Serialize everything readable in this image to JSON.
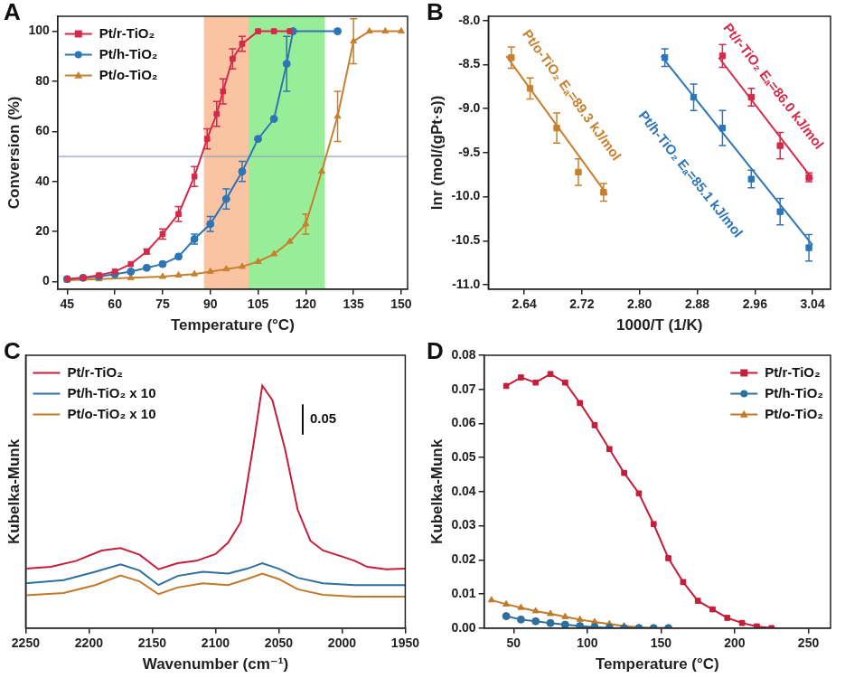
{
  "chart_data": [
    {
      "type": "line",
      "title": "A",
      "x_label": "Temperature (°C)",
      "y_label": "Conversion (%)",
      "xlim": [
        42,
        152
      ],
      "xticks": [
        45,
        60,
        75,
        90,
        105,
        120,
        135,
        150
      ],
      "ylim": [
        -3,
        106
      ],
      "yticks": [
        0,
        20,
        40,
        60,
        80,
        100
      ],
      "grid": false,
      "legend": "upper left",
      "bands": [
        {
          "from": 88,
          "to": 102,
          "color": "#f9b48a"
        },
        {
          "from": 102,
          "to": 126,
          "color": "#7ee87e"
        }
      ],
      "reference_line": {
        "y": 50,
        "color": "#8fa3bf"
      },
      "series": [
        {
          "name": "Pt/r-TiO₂",
          "color": "#d42a4a",
          "marker": "square",
          "line_style": "solid",
          "x": [
            45,
            50,
            55,
            60,
            65,
            70,
            75,
            80,
            85,
            89,
            92,
            94,
            97,
            100,
            105,
            110,
            115
          ],
          "values": [
            1,
            1.5,
            2.5,
            4,
            7,
            12,
            19,
            27,
            42,
            57,
            67,
            76,
            89,
            95,
            100,
            100,
            100
          ],
          "errors": [
            null,
            null,
            null,
            null,
            null,
            1,
            2,
            3,
            4,
            4,
            5,
            5,
            4,
            3,
            null,
            null,
            null
          ]
        },
        {
          "name": "Pt/h-TiO₂",
          "color": "#2e75b6",
          "marker": "circle",
          "line_style": "solid",
          "x": [
            45,
            50,
            55,
            60,
            65,
            70,
            75,
            80,
            85,
            90,
            95,
            100,
            105,
            110,
            114,
            116,
            130
          ],
          "values": [
            1,
            1.5,
            2,
            3,
            4,
            5.5,
            7,
            10,
            17,
            23,
            33,
            44,
            57,
            65,
            87,
            100,
            100
          ],
          "errors": [
            null,
            null,
            null,
            null,
            null,
            null,
            null,
            null,
            2,
            3,
            4,
            4,
            null,
            null,
            11,
            null,
            null
          ]
        },
        {
          "name": "Pt/o-TiO₂",
          "color": "#c7802e",
          "marker": "triangle",
          "line_style": "solid",
          "x": [
            45,
            55,
            65,
            75,
            80,
            85,
            90,
            95,
            100,
            105,
            110,
            115,
            120,
            125,
            130,
            135,
            140,
            145,
            150
          ],
          "values": [
            0.5,
            1,
            1.5,
            2,
            2.5,
            3,
            4,
            5,
            6,
            8,
            11,
            16,
            23,
            44,
            66,
            96,
            100,
            100,
            100
          ],
          "errors": [
            null,
            null,
            null,
            null,
            null,
            null,
            null,
            null,
            null,
            null,
            null,
            null,
            4,
            null,
            10,
            9,
            null,
            null,
            null
          ]
        }
      ]
    },
    {
      "type": "scatter",
      "title": "B",
      "x_label": "1000/T (1/K)",
      "y_label": "lnr (mol/(gPt·s))",
      "xlim": [
        2.59,
        3.065
      ],
      "xticks": [
        2.64,
        2.72,
        {
          "value": 2.8,
          "label": "2.80"
        },
        2.88,
        2.96,
        3.04
      ],
      "ylim": [
        -11.05,
        -7.95
      ],
      "yticks": [
        {
          "value": -11,
          "label": "-11.0"
        },
        -10.5,
        {
          "value": -10,
          "label": "-10.0"
        },
        -9.5,
        {
          "value": -9,
          "label": "-9.0"
        },
        -8.5,
        {
          "value": -8,
          "label": "-8.0"
        }
      ],
      "grid": false,
      "series": [
        {
          "color": "#c7802e",
          "marker": "square",
          "x": [
            2.622,
            2.648,
            2.685,
            2.715,
            2.75
          ],
          "values": [
            -8.42,
            -8.77,
            -9.22,
            -9.72,
            -9.95
          ],
          "errors": [
            0.12,
            0.12,
            0.17,
            0.15,
            0.1
          ],
          "fit": {
            "x": [
              2.615,
              2.755
            ],
            "values": [
              -8.4,
              -9.98
            ]
          },
          "label": {
            "text": "Pt/o-TiO₂ Eₐ=89.3 kJ/mol",
            "x": 2.705,
            "y": -8.85
          }
        },
        {
          "color": "#2e75b6",
          "marker": "square",
          "x": [
            2.835,
            2.875,
            2.915,
            2.955,
            2.995,
            3.035
          ],
          "values": [
            -8.42,
            -8.87,
            -9.22,
            -9.8,
            -10.17,
            -10.58
          ],
          "errors": [
            0.1,
            0.15,
            0.2,
            0.1,
            0.15,
            0.15
          ],
          "fit": {
            "x": [
              2.83,
              3.04
            ],
            "values": [
              -8.4,
              -10.55
            ]
          },
          "label": {
            "text": "Pt/h-TiO₂ Eₐ=85.1 kJ/mol",
            "x": 2.87,
            "y": -9.75
          }
        },
        {
          "color": "#d42a4a",
          "marker": "square",
          "x": [
            2.915,
            2.955,
            2.995,
            3.035
          ],
          "values": [
            -8.4,
            -8.87,
            -9.42,
            -9.78
          ],
          "errors": [
            0.13,
            0.1,
            0.15,
            0.05
          ],
          "fit": {
            "x": [
              2.91,
              3.04
            ],
            "values": [
              -8.42,
              -9.8
            ]
          },
          "label": {
            "text": "Pt/r-TiO₂ Eₐ=86.0 kJ/mol",
            "x": 2.985,
            "y": -8.75
          }
        }
      ]
    },
    {
      "type": "line",
      "title": "C",
      "x_label": "Wavenumber (cm⁻¹)",
      "y_label": "Kubelka-Munk",
      "xlim": [
        2250,
        1950
      ],
      "xticks": [
        2250,
        2200,
        2150,
        2100,
        2050,
        2000,
        1950
      ],
      "ylim": [
        0,
        0.45
      ],
      "tick_labels": "x",
      "grid": false,
      "legend": "upper left",
      "scale_bar": 0.05,
      "series": [
        {
          "name": "Pt/r-TiO₂",
          "color": "#c41e3a",
          "marker": "none",
          "line_style": "solid",
          "x": [
            2250,
            2230,
            2210,
            2190,
            2175,
            2160,
            2145,
            2130,
            2115,
            2100,
            2090,
            2080,
            2070,
            2063,
            2055,
            2045,
            2035,
            2025,
            2015,
            2000,
            1990,
            1980,
            1965,
            1950
          ],
          "values": [
            0.098,
            0.101,
            0.111,
            0.128,
            0.132,
            0.121,
            0.097,
            0.107,
            0.111,
            0.122,
            0.141,
            0.175,
            0.302,
            0.4,
            0.376,
            0.295,
            0.195,
            0.144,
            0.128,
            0.118,
            0.111,
            0.101,
            0.097,
            0.098
          ]
        },
        {
          "name": "Pt/h-TiO₂ x 10",
          "color": "#2f6f9f",
          "marker": "none",
          "line_style": "solid",
          "x": [
            2250,
            2220,
            2195,
            2175,
            2160,
            2145,
            2130,
            2110,
            2090,
            2075,
            2063,
            2050,
            2035,
            2015,
            1990,
            1950
          ],
          "values": [
            0.074,
            0.079,
            0.093,
            0.105,
            0.095,
            0.071,
            0.086,
            0.093,
            0.09,
            0.098,
            0.107,
            0.098,
            0.083,
            0.074,
            0.071,
            0.071
          ]
        },
        {
          "name": "Pt/o-TiO₂ x 10",
          "color": "#c17a2a",
          "marker": "none",
          "line_style": "solid",
          "x": [
            2250,
            2220,
            2195,
            2175,
            2160,
            2145,
            2130,
            2110,
            2090,
            2075,
            2063,
            2050,
            2035,
            2015,
            1990,
            1950
          ],
          "values": [
            0.054,
            0.058,
            0.071,
            0.087,
            0.077,
            0.056,
            0.067,
            0.074,
            0.071,
            0.081,
            0.09,
            0.081,
            0.064,
            0.055,
            0.052,
            0.052
          ]
        }
      ]
    },
    {
      "type": "line",
      "title": "D",
      "x_label": "Temperature (°C)",
      "y_label": "Kubelka-Munk",
      "xlim": [
        30,
        265
      ],
      "xticks": [
        50,
        100,
        150,
        200,
        250
      ],
      "ylim": [
        0,
        0.08
      ],
      "yticks": [
        {
          "value": 0,
          "label": "0.00"
        },
        0.01,
        0.02,
        0.03,
        0.04,
        0.05,
        0.06,
        0.07,
        0.08
      ],
      "grid": false,
      "legend": "upper right",
      "series": [
        {
          "name": "Pt/r-TiO₂",
          "color": "#c41e3a",
          "marker": "square",
          "line_style": "solid",
          "x": [
            45,
            55,
            65,
            75,
            85,
            95,
            105,
            115,
            125,
            135,
            145,
            155,
            165,
            175,
            185,
            195,
            205,
            215,
            225
          ],
          "values": [
            0.071,
            0.0735,
            0.072,
            0.0745,
            0.072,
            0.066,
            0.0595,
            0.0525,
            0.0455,
            0.0395,
            0.0305,
            0.0205,
            0.0135,
            0.008,
            0.0055,
            0.003,
            0.0015,
            0.0005,
            0
          ]
        },
        {
          "name": "Pt/h-TiO₂",
          "color": "#2f6f9f",
          "marker": "circle",
          "line_style": "solid",
          "x": [
            45,
            55,
            65,
            75,
            85,
            95,
            105,
            115,
            125,
            135,
            145,
            155
          ],
          "values": [
            0.0035,
            0.0025,
            0.002,
            0.0015,
            0.001,
            0.0006,
            0.0003,
            0.0001,
            0,
            0,
            0,
            0
          ]
        },
        {
          "name": "Pt/o-TiO₂",
          "color": "#c17a2a",
          "marker": "triangle",
          "line_style": "solid",
          "x": [
            35,
            45,
            55,
            65,
            75,
            85,
            95,
            105,
            115,
            125,
            135,
            145,
            155
          ],
          "values": [
            0.0082,
            0.007,
            0.006,
            0.005,
            0.0042,
            0.0033,
            0.0025,
            0.0018,
            0.0012,
            0.0006,
            0.0002,
            0,
            0
          ]
        }
      ]
    }
  ]
}
